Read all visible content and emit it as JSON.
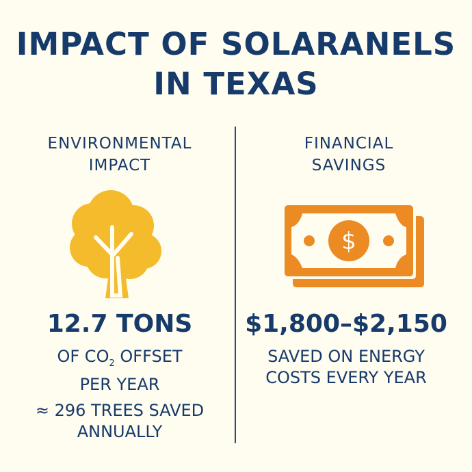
{
  "title": {
    "line1": "IMPACT OF SOLARANELS",
    "line2": "IN TEXAS"
  },
  "environmental": {
    "heading_line1": "ENVIRONMENTAL",
    "heading_line2": "IMPACT",
    "icon": "tree-icon",
    "value": "12.7 TONS",
    "desc_prefix": "OF CO",
    "desc_subscript": "2",
    "desc_suffix": " OFFSET",
    "desc_line2": "PER YEAR",
    "equiv_line1": "≈ 296 TREES SAVED",
    "equiv_line2": "ANNUALLY"
  },
  "financial": {
    "heading_line1": "FINANCIAL",
    "heading_line2": "SAVINGS",
    "icon": "money-bill-icon",
    "value": "$1,800–$2,150",
    "desc_line1": "SAVED ON ENERGY",
    "desc_line2": "COSTS EVERY YEAR"
  },
  "colors": {
    "text": "#163a6a",
    "tree": "#f4bb2c",
    "money": "#ec8a24",
    "background": "#fffcf0"
  }
}
